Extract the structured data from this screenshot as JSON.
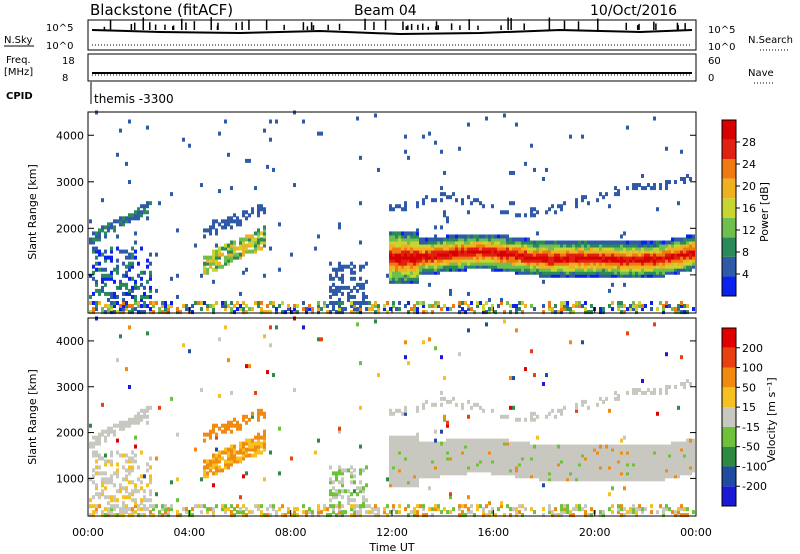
{
  "header": {
    "station": "Blackstone (fitACF)",
    "beam": "Beam 04",
    "date": "10/Oct/2016"
  },
  "panels": {
    "nsky_label": "N.Sky",
    "nsearch_label": "N.Search",
    "nsky_ticks": [
      "10^5",
      "10^0"
    ],
    "nsearch_ticks": [
      "10^5",
      "10^0"
    ],
    "freq_label": [
      "Freq.",
      "[MHz]"
    ],
    "freq_ticks": [
      "18",
      "8"
    ],
    "nave_label": "Nave",
    "nave_ticks": [
      "60",
      "0"
    ],
    "cpid_label": "CPID",
    "cpid_value": "themis -3300"
  },
  "colors": {
    "power": [
      "#0a22ee",
      "#2f5aa8",
      "#2a8a5a",
      "#6fbf4f",
      "#c7d431",
      "#f0b020",
      "#f07a10",
      "#e02010",
      "#d80000"
    ],
    "velocity": [
      "#1a1ad6",
      "#1f4ca0",
      "#2e8a40",
      "#6dc23a",
      "#c8c8c0",
      "#f6c020",
      "#f08a10",
      "#e84010",
      "#e00000"
    ]
  },
  "chart_data": [
    {
      "type": "heatmap",
      "title": "Power",
      "ylabel": "Slant Range [km]",
      "ylim": [
        180,
        4500
      ],
      "yticks": [
        "4000",
        "3000",
        "2000",
        "1000"
      ],
      "xlim": [
        "00:00",
        "24:00"
      ],
      "colorbar_label": "Power [dB]",
      "colorbar_ticks": [
        "28",
        "24",
        "20",
        "16",
        "12",
        "8",
        "4"
      ],
      "features": [
        {
          "name": "main band",
          "x_start": "11:50",
          "x_end": "24:00",
          "range_km": [
            1200,
            1600
          ],
          "peak_db": 28
        },
        {
          "name": "early band",
          "x_start": "04:30",
          "x_end": "07:00",
          "range_km": [
            1050,
            1700
          ],
          "peak_db": 20
        }
      ]
    },
    {
      "type": "heatmap",
      "title": "Velocity",
      "ylabel": "Slant Range [km]",
      "ylim": [
        180,
        4500
      ],
      "yticks": [
        "4000",
        "3000",
        "2000",
        "1000"
      ],
      "xlabel": "Time UT",
      "xticks": [
        "00:00",
        "04:00",
        "08:00",
        "12:00",
        "16:00",
        "20:00",
        "00:00"
      ],
      "colorbar_label": "Velocity [m s⁻¹]",
      "colorbar_ticks": [
        "200",
        "100",
        "50",
        "15",
        "-15",
        "-50",
        "-100",
        "-200"
      ]
    }
  ]
}
